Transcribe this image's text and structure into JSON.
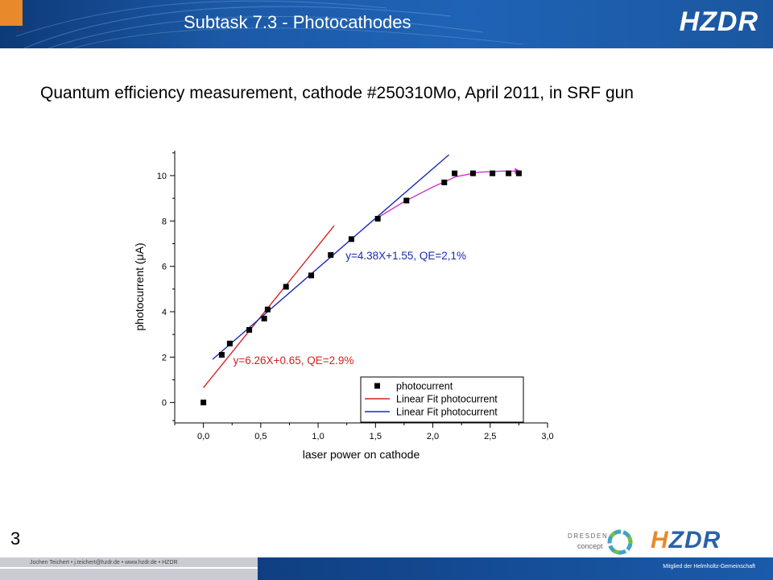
{
  "header": {
    "title": "Subtask 7.3  -  Photocathodes",
    "logo_text": "HZDR"
  },
  "slide": {
    "subtitle": "Quantum efficiency  measurement, cathode #250310Mo,  April 2011, in SRF gun",
    "page_number": "3"
  },
  "footer": {
    "author_line": "Jochen Teichert  •  j.teichert@hzdr.de  •  www.hzdr.de  •  HZDR",
    "member_text": "Mitglied der Helmholtz-Gemeinschaft",
    "dresden_line1": "DRESDEN",
    "dresden_line2": "concept",
    "logo_text": "HZDR"
  },
  "colors": {
    "header_blue": "#1f63b6",
    "accent_orange": "#e8892b",
    "fit1": "#d42020",
    "fit2": "#1a2bb0",
    "fit_curve": "#cc33cc"
  },
  "chart_data": {
    "type": "scatter",
    "xlabel": "laser power on cathode",
    "ylabel": "photocurrent (μA)",
    "xlim": [
      -0.25,
      3.0
    ],
    "ylim": [
      -0.9,
      11.1
    ],
    "x_ticks": [
      0.0,
      0.5,
      1.0,
      1.5,
      2.0,
      2.5,
      3.0
    ],
    "x_tick_labels": [
      "0,0",
      "0,5",
      "1,0",
      "1,5",
      "2,0",
      "2,5",
      "3,0"
    ],
    "y_ticks": [
      0,
      2,
      4,
      6,
      8,
      10
    ],
    "y_tick_labels": [
      "0",
      "2",
      "4",
      "6",
      "8",
      "10"
    ],
    "series": [
      {
        "name": "photocurrent",
        "kind": "points",
        "color": "#000000",
        "x": [
          0.0,
          0.16,
          0.23,
          0.4,
          0.53,
          0.56,
          0.72,
          0.94,
          1.11,
          1.29,
          1.52,
          1.77,
          2.1,
          2.19,
          2.35,
          2.52,
          2.66,
          2.75
        ],
        "y": [
          0.0,
          2.1,
          2.6,
          3.2,
          3.7,
          4.1,
          5.1,
          5.6,
          6.5,
          7.2,
          8.1,
          8.9,
          9.7,
          10.1,
          10.1,
          10.1,
          10.1,
          10.1
        ]
      },
      {
        "name": "Linear Fit photocurrent",
        "kind": "line",
        "color": "#d42020",
        "x": [
          0.0,
          1.14
        ],
        "y": [
          0.65,
          7.79
        ]
      },
      {
        "name": "Linear Fit photocurrent",
        "kind": "line",
        "color": "#1a2bb0",
        "x": [
          0.08,
          2.14
        ],
        "y": [
          1.9,
          10.92
        ]
      },
      {
        "name": "",
        "kind": "line",
        "color": "#cc33cc",
        "x": [
          1.52,
          1.75,
          2.0,
          2.2,
          2.4,
          2.6,
          2.75
        ],
        "y": [
          8.15,
          8.85,
          9.5,
          9.95,
          10.15,
          10.2,
          10.2
        ]
      }
    ],
    "annotations": [
      {
        "text": "y=4.38X+1.55, QE=2,1%",
        "x": 1.24,
        "y": 6.3,
        "color": "#1a2bb0"
      },
      {
        "text": "y=6.26X+0.65, QE=2.9%",
        "x": 0.26,
        "y": 1.7,
        "color": "#d42020"
      }
    ],
    "legend": {
      "position": "bottom-right",
      "entries": [
        {
          "label": "photocurrent",
          "kind": "marker",
          "color": "#000000"
        },
        {
          "label": "Linear Fit photocurrent",
          "kind": "line",
          "color": "#d42020"
        },
        {
          "label": "Linear Fit photocurrent",
          "kind": "line",
          "color": "#1a2bb0"
        }
      ]
    },
    "grid": false
  }
}
